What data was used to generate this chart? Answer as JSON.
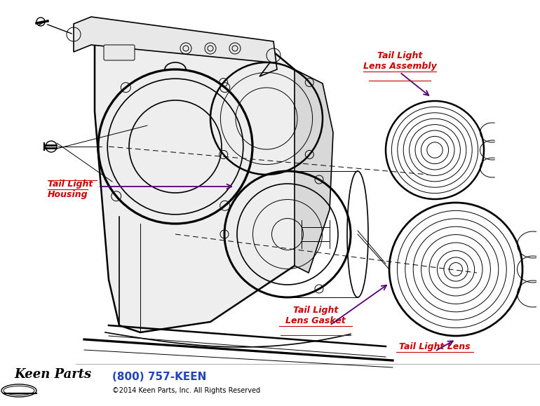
{
  "bg_color": "#ffffff",
  "line_color": "#000000",
  "label_color_red": "#cc0000",
  "label_color_purple": "#550077",
  "phone_color": "#2244bb",
  "labels": {
    "tail_light_lens_assembly": "Tail Light\nLens Assembly",
    "tail_light_housing": "Tail Light\nHousing",
    "tail_light_lens_gasket": "Tail Light\nLens Gasket",
    "tail_light_lens": "Tail Light Lens",
    "phone": "(800) 757-KEEN",
    "copyright": "©2014 Keen Parts, Inc. All Rights Reserved"
  }
}
